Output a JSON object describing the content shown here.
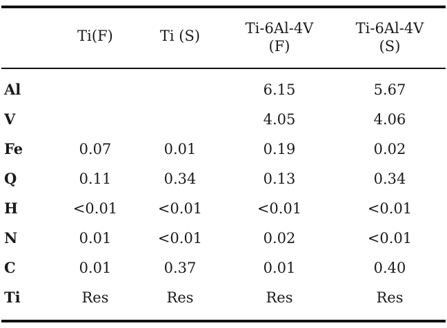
{
  "table": {
    "headers": [
      [
        "Ti(F)"
      ],
      [
        "Ti (S)"
      ],
      [
        "Ti-6Al-4V",
        "(F)"
      ],
      [
        "Ti-6Al-4V",
        "(S)"
      ]
    ],
    "rows": [
      {
        "label": "Al",
        "values": [
          "",
          "",
          "6.15",
          "5.67"
        ]
      },
      {
        "label": "V",
        "values": [
          "",
          "",
          "4.05",
          "4.06"
        ]
      },
      {
        "label": "Fe",
        "values": [
          "0.07",
          "0.01",
          "0.19",
          "0.02"
        ]
      },
      {
        "label": "Q",
        "values": [
          "0.11",
          "0.34",
          "0.13",
          "0.34"
        ]
      },
      {
        "label": "H",
        "values": [
          "<0.01",
          "<0.01",
          "<0.01",
          "<0.01"
        ]
      },
      {
        "label": "N",
        "values": [
          "0.01",
          "<0.01",
          "0.02",
          "<0.01"
        ]
      },
      {
        "label": "C",
        "values": [
          "0.01",
          "0.37",
          "0.01",
          "0.40"
        ]
      },
      {
        "label": "Ti",
        "values": [
          "Res",
          "Res",
          "Res",
          "Res"
        ]
      }
    ]
  }
}
